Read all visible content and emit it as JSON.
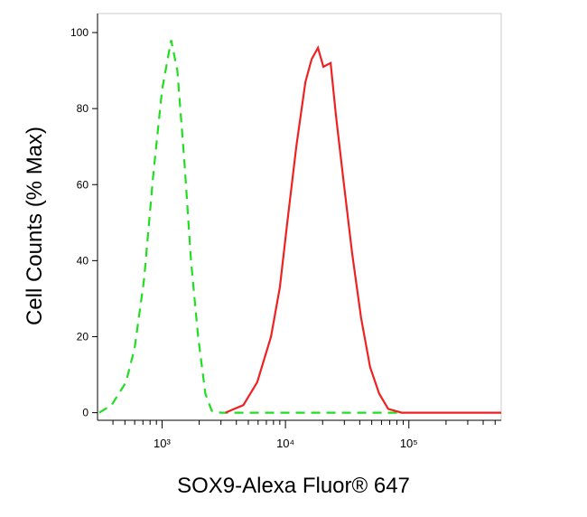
{
  "chart_data": {
    "type": "line",
    "xlabel": "SOX9-Alexa Fluor® 647",
    "ylabel": "Cell Counts (% Max)",
    "xscale": "log",
    "xlim": [
      300,
      560000
    ],
    "ylim": [
      -2,
      105
    ],
    "xticks": [
      {
        "value": 1000,
        "label": "10³"
      },
      {
        "value": 10000,
        "label": "10⁴"
      },
      {
        "value": 100000,
        "label": "10⁵"
      }
    ],
    "xminorticks": [
      400,
      500,
      600,
      700,
      800,
      900,
      2000,
      3000,
      4000,
      5000,
      6000,
      7000,
      8000,
      9000,
      20000,
      30000,
      40000,
      50000,
      60000,
      70000,
      80000,
      90000,
      200000,
      300000,
      400000,
      500000
    ],
    "yticks": [
      0,
      20,
      40,
      60,
      80,
      100
    ],
    "series": [
      {
        "color": "#22dd22",
        "dash": true,
        "x": [
          310,
          390,
          510,
          600,
          715,
          845,
          1000,
          1184,
          1330,
          1525,
          1715,
          1960,
          2245,
          2530,
          3000,
          10000,
          30000,
          90000
        ],
        "values": [
          0,
          2,
          8,
          17,
          35,
          62,
          85,
          98,
          90,
          65,
          40,
          20,
          5,
          0.5,
          0,
          0,
          0,
          0
        ]
      },
      {
        "color": "#ee2222",
        "dash": false,
        "x": [
          3260,
          4560,
          5900,
          7630,
          9000,
          10340,
          12240,
          14500,
          16300,
          18350,
          20300,
          23200,
          25700,
          29300,
          34700,
          41000,
          48500,
          57500,
          68000,
          87500,
          560000
        ],
        "values": [
          0,
          2,
          8,
          20,
          33,
          50,
          70,
          87,
          93,
          96,
          91,
          92,
          78,
          62,
          42,
          25,
          12,
          5,
          1,
          0,
          0
        ]
      }
    ]
  }
}
